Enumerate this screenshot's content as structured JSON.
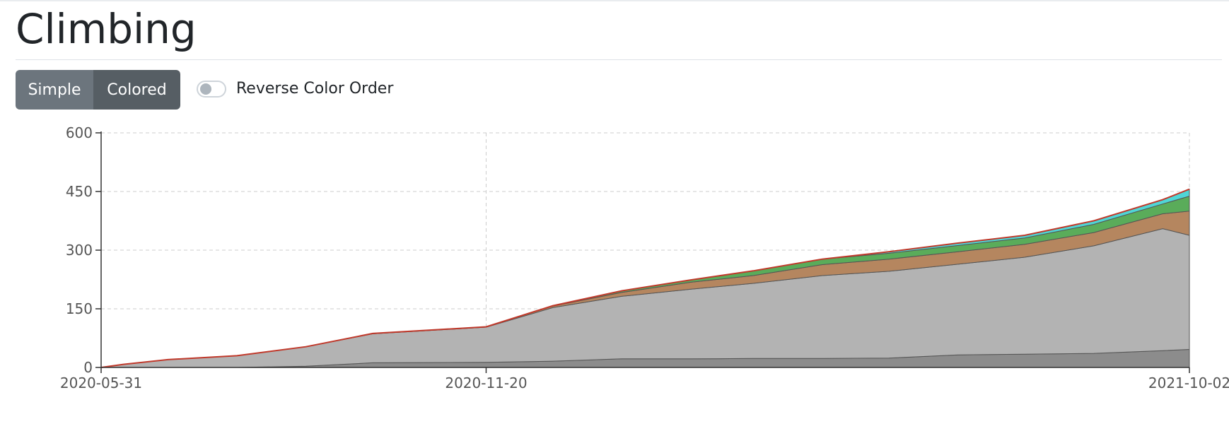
{
  "page": {
    "title": "Climbing"
  },
  "view_toggle": {
    "simple_label": "Simple",
    "colored_label": "Colored",
    "active": "Colored"
  },
  "reverse_toggle": {
    "label": "Reverse Color Order",
    "checked": false
  },
  "chart_data": {
    "type": "area",
    "stacked": true,
    "grid": true,
    "x_ticks": [
      "2020-05-31",
      "2020-11-20",
      "2021-10-02"
    ],
    "y_ticks": [
      0,
      150,
      300,
      450,
      600
    ],
    "xlim": [
      "2020-05-31",
      "2021-10-02"
    ],
    "ylim": [
      0,
      600
    ],
    "x": [
      "2020-05-31",
      "2020-06-10",
      "2020-06-30",
      "2020-07-31",
      "2020-08-31",
      "2020-09-30",
      "2020-11-20",
      "2020-12-20",
      "2021-01-20",
      "2021-02-20",
      "2021-03-20",
      "2021-04-20",
      "2021-05-20",
      "2021-06-20",
      "2021-07-20",
      "2021-08-20",
      "2021-09-20",
      "2021-10-02"
    ],
    "series": [
      {
        "color": "#8c8c8c",
        "values": [
          0,
          0,
          0,
          0,
          3,
          12,
          13,
          16,
          22,
          22,
          23,
          23,
          24,
          32,
          34,
          36,
          43,
          46
        ]
      },
      {
        "color": "#b3b3b3",
        "values": [
          0,
          8,
          20,
          30,
          50,
          74,
          90,
          137,
          160,
          178,
          192,
          212,
          222,
          232,
          248,
          275,
          312,
          292
        ]
      },
      {
        "color": "#b5865f",
        "values": [
          0,
          0,
          0,
          0,
          0,
          1,
          1,
          4,
          10,
          18,
          20,
          28,
          31,
          32,
          33,
          34,
          38,
          62
        ]
      },
      {
        "color": "#5aac5a",
        "values": [
          0,
          0,
          0,
          0,
          0,
          0,
          0,
          1,
          4,
          6,
          12,
          14,
          15,
          16,
          16,
          21,
          25,
          38
        ]
      },
      {
        "color": "#4fd6d6",
        "values": [
          0,
          0,
          0,
          0,
          0,
          0,
          0,
          0,
          0,
          0,
          0,
          0,
          4,
          6,
          7,
          9,
          11,
          18
        ]
      }
    ]
  }
}
